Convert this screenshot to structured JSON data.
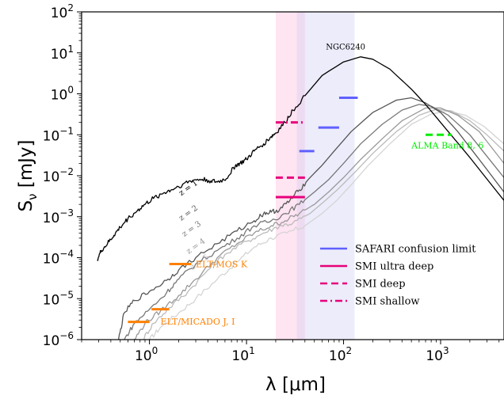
{
  "chart_data": {
    "type": "line",
    "title": "",
    "xlabel": "λ [μm]",
    "ylabel": "S",
    "ylabel_subscript": "ν",
    "ylabel_unit": " [mJy]",
    "xscale": "log",
    "yscale": "log",
    "xlim": [
      0.2,
      4500
    ],
    "ylim": [
      1e-06,
      100
    ],
    "x_ticks": [
      {
        "v": 1,
        "base": "10",
        "exp": "0"
      },
      {
        "v": 10,
        "base": "10",
        "exp": "1"
      },
      {
        "v": 100,
        "base": "10",
        "exp": "2"
      },
      {
        "v": 1000,
        "base": "10",
        "exp": "3"
      }
    ],
    "y_ticks": [
      {
        "v": 100,
        "base": "10",
        "exp": "2"
      },
      {
        "v": 10,
        "base": "10",
        "exp": "1"
      },
      {
        "v": 1,
        "base": "10",
        "exp": "0"
      },
      {
        "v": 0.1,
        "base": "10",
        "exp": "−1"
      },
      {
        "v": 0.01,
        "base": "10",
        "exp": "−2"
      },
      {
        "v": 0.001,
        "base": "10",
        "exp": "−3"
      },
      {
        "v": 0.0001,
        "base": "10",
        "exp": "−4"
      },
      {
        "v": 1e-05,
        "base": "10",
        "exp": "−5"
      },
      {
        "v": 1e-06,
        "base": "10",
        "exp": "−6"
      }
    ],
    "bands": [
      {
        "x": [
          20,
          33
        ],
        "color": "#ffb3d9",
        "opacity": 0.35
      },
      {
        "x": [
          33,
          40
        ],
        "color": "#d8b0e0",
        "opacity": 0.45
      },
      {
        "x": [
          40,
          130
        ],
        "color": "#c8c8f4",
        "opacity": 0.35
      }
    ],
    "series": [
      {
        "name": "NGC6240",
        "color": "#000000",
        "points": [
          [
            0.29,
            9e-05
          ],
          [
            0.32,
            0.00015
          ],
          [
            0.37,
            0.00022
          ],
          [
            0.43,
            0.00035
          ],
          [
            0.5,
            0.00055
          ],
          [
            0.6,
            0.0009
          ],
          [
            0.75,
            0.0014
          ],
          [
            0.9,
            0.002
          ],
          [
            1.1,
            0.0028
          ],
          [
            1.4,
            0.0038
          ],
          [
            1.7,
            0.0046
          ],
          [
            2.2,
            0.0062
          ],
          [
            2.8,
            0.0078
          ],
          [
            3.5,
            0.0082
          ],
          [
            4.3,
            0.0075
          ],
          [
            5,
            0.007
          ],
          [
            6.2,
            0.0085
          ],
          [
            7.7,
            0.018
          ],
          [
            8.6,
            0.02
          ],
          [
            10,
            0.025
          ],
          [
            12,
            0.04
          ],
          [
            15,
            0.06
          ],
          [
            18,
            0.09
          ],
          [
            20,
            0.11
          ],
          [
            25,
            0.2
          ],
          [
            30,
            0.4
          ],
          [
            40,
            0.9
          ],
          [
            60,
            2.8
          ],
          [
            100,
            6
          ],
          [
            150,
            8
          ],
          [
            200,
            7
          ],
          [
            300,
            4
          ],
          [
            500,
            1.3
          ],
          [
            700,
            0.55
          ],
          [
            1000,
            0.2
          ],
          [
            2000,
            0.028
          ],
          [
            4500,
            0.0025
          ]
        ]
      },
      {
        "name": "z = 1",
        "color": "#555555",
        "points": [
          [
            0.48,
            1e-06
          ],
          [
            0.55,
            4.5e-06
          ],
          [
            0.7,
            9e-06
          ],
          [
            1,
            1.5e-05
          ],
          [
            1.5,
            2.8e-05
          ],
          [
            2,
            5e-05
          ],
          [
            3,
            0.0001
          ],
          [
            5,
            0.00022
          ],
          [
            8,
            0.00045
          ],
          [
            12,
            0.0008
          ],
          [
            15,
            0.0012
          ],
          [
            18,
            0.0013
          ],
          [
            22,
            0.0015
          ],
          [
            28,
            0.0025
          ],
          [
            35,
            0.0045
          ],
          [
            45,
            0.009
          ],
          [
            60,
            0.018
          ],
          [
            80,
            0.04
          ],
          [
            120,
            0.12
          ],
          [
            200,
            0.35
          ],
          [
            350,
            0.7
          ],
          [
            500,
            0.8
          ],
          [
            700,
            0.6
          ],
          [
            1000,
            0.35
          ],
          [
            1500,
            0.12
          ],
          [
            2500,
            0.025
          ],
          [
            4500,
            0.004
          ]
        ]
      },
      {
        "name": "z = 2",
        "color": "#777777",
        "points": [
          [
            0.55,
            1e-06
          ],
          [
            0.7,
            2.5e-06
          ],
          [
            1,
            5.5e-06
          ],
          [
            1.5,
            1.4e-05
          ],
          [
            2,
            3e-05
          ],
          [
            3,
            7e-05
          ],
          [
            5,
            0.00015
          ],
          [
            8,
            0.0003
          ],
          [
            12,
            0.0006
          ],
          [
            18,
            0.0008
          ],
          [
            25,
            0.0012
          ],
          [
            35,
            0.002
          ],
          [
            50,
            0.004
          ],
          [
            70,
            0.008
          ],
          [
            100,
            0.02
          ],
          [
            150,
            0.06
          ],
          [
            250,
            0.18
          ],
          [
            400,
            0.4
          ],
          [
            600,
            0.55
          ],
          [
            800,
            0.5
          ],
          [
            1200,
            0.3
          ],
          [
            2000,
            0.1
          ],
          [
            3000,
            0.03
          ],
          [
            4500,
            0.009
          ]
        ]
      },
      {
        "name": "z = 3",
        "color": "#999999",
        "points": [
          [
            0.7,
            1e-06
          ],
          [
            0.9,
            2.5e-06
          ],
          [
            1.3,
            5e-06
          ],
          [
            2,
            1.2e-05
          ],
          [
            3,
            3e-05
          ],
          [
            5,
            0.0001
          ],
          [
            8,
            0.00022
          ],
          [
            12,
            0.0004
          ],
          [
            18,
            0.0006
          ],
          [
            25,
            0.0008
          ],
          [
            35,
            0.0012
          ],
          [
            50,
            0.002
          ],
          [
            70,
            0.004
          ],
          [
            100,
            0.009
          ],
          [
            150,
            0.025
          ],
          [
            250,
            0.08
          ],
          [
            400,
            0.22
          ],
          [
            700,
            0.45
          ],
          [
            1000,
            0.45
          ],
          [
            1500,
            0.3
          ],
          [
            2500,
            0.12
          ],
          [
            4500,
            0.02
          ]
        ]
      },
      {
        "name": "z = 4",
        "color": "#bbbbbb",
        "points": [
          [
            0.85,
            1e-06
          ],
          [
            1.1,
            2.5e-06
          ],
          [
            1.6,
            6e-06
          ],
          [
            2.5,
            1.5e-05
          ],
          [
            4,
            5e-05
          ],
          [
            6,
            0.00012
          ],
          [
            10,
            0.00025
          ],
          [
            15,
            0.0004
          ],
          [
            22,
            0.0006
          ],
          [
            30,
            0.0007
          ],
          [
            45,
            0.0012
          ],
          [
            65,
            0.0025
          ],
          [
            90,
            0.005
          ],
          [
            130,
            0.012
          ],
          [
            200,
            0.035
          ],
          [
            350,
            0.12
          ],
          [
            600,
            0.3
          ],
          [
            900,
            0.42
          ],
          [
            1300,
            0.38
          ],
          [
            2000,
            0.22
          ],
          [
            3000,
            0.1
          ],
          [
            4500,
            0.04
          ]
        ]
      },
      {
        "name": "z = 5",
        "color": "#d4d4d4",
        "points": [
          [
            1,
            1e-06
          ],
          [
            1.3,
            2e-06
          ],
          [
            2,
            4.5e-06
          ],
          [
            3,
            1e-05
          ],
          [
            5,
            3e-05
          ],
          [
            8,
            8e-05
          ],
          [
            12,
            0.00018
          ],
          [
            18,
            0.0003
          ],
          [
            26,
            0.0004
          ],
          [
            40,
            0.0006
          ],
          [
            60,
            0.0012
          ],
          [
            85,
            0.0025
          ],
          [
            120,
            0.006
          ],
          [
            180,
            0.018
          ],
          [
            300,
            0.06
          ],
          [
            500,
            0.18
          ],
          [
            800,
            0.32
          ],
          [
            1200,
            0.38
          ],
          [
            1800,
            0.3
          ],
          [
            2800,
            0.16
          ],
          [
            4500,
            0.06
          ]
        ]
      }
    ],
    "curve_labels": [
      {
        "text": "NGC6240",
        "x": 105,
        "y": 12,
        "color": "#000000",
        "rotate": 0
      },
      {
        "text": "z = 1",
        "x": 2.6,
        "y": 0.0045,
        "color": "#000000",
        "rotate": -35
      },
      {
        "text": "z = 2",
        "x": 2.6,
        "y": 0.0011,
        "color": "#555555",
        "rotate": -35
      },
      {
        "text": "z = 3",
        "x": 2.8,
        "y": 0.00045,
        "color": "#777777",
        "rotate": -35
      },
      {
        "text": "z = 4",
        "x": 3.1,
        "y": 0.00017,
        "color": "#999999",
        "rotate": -35
      },
      {
        "text": "z = 5",
        "x": 3.4,
        "y": 7e-05,
        "color": "#bbbbbb",
        "rotate": -35
      }
    ],
    "limits": [
      {
        "group": "SAFARI",
        "x": [
          35,
          50
        ],
        "y": 0.04,
        "color": "#6060ff",
        "style": "solid"
      },
      {
        "group": "SAFARI",
        "x": [
          55,
          90
        ],
        "y": 0.15,
        "color": "#6060ff",
        "style": "solid"
      },
      {
        "group": "SAFARI",
        "x": [
          90,
          140
        ],
        "y": 0.8,
        "color": "#6060ff",
        "style": "solid"
      },
      {
        "group": "SMI",
        "x": [
          20,
          40
        ],
        "y": 0.003,
        "color": "#e8007a",
        "style": "solid"
      },
      {
        "group": "SMI",
        "x": [
          20,
          40
        ],
        "y": 0.009,
        "color": "#e8007a",
        "style": "dashed"
      },
      {
        "group": "SMI",
        "x": [
          20,
          40
        ],
        "y": 0.2,
        "color": "#e8007a",
        "style": "dashdot"
      },
      {
        "group": "ALMA",
        "x": [
          700,
          1300
        ],
        "y": 0.1,
        "color": "#00ee00",
        "style": "dashed"
      },
      {
        "group": "ELT",
        "x": [
          1.6,
          2.7
        ],
        "y": 7e-05,
        "color": "#ff8000",
        "style": "solid"
      },
      {
        "group": "ELT",
        "x": [
          1.05,
          1.6
        ],
        "y": 5.5e-06,
        "color": "#ff8000",
        "style": "solid"
      },
      {
        "group": "ELT",
        "x": [
          0.6,
          1
        ],
        "y": 2.7e-06,
        "color": "#ff8000",
        "style": "solid"
      }
    ],
    "annotations": [
      {
        "text": "ELT/MOS K",
        "x": 3.0,
        "y": 7e-05,
        "color": "#ff8000"
      },
      {
        "text": "ELT/MICADO J, I",
        "x": 1.3,
        "y": 2.8e-06,
        "color": "#ff8000"
      },
      {
        "text": "ALMA Band 8, 6",
        "x": 500,
        "y": 0.055,
        "color": "#00ee00"
      }
    ],
    "legend": {
      "placement": "lower right",
      "entries": [
        {
          "label": "SAFARI confusion limit",
          "color": "#6060ff",
          "style": "solid"
        },
        {
          "label": "SMI ultra deep",
          "color": "#e8007a",
          "style": "solid"
        },
        {
          "label": "SMI deep",
          "color": "#e8007a",
          "style": "dashed"
        },
        {
          "label": "SMI shallow",
          "color": "#e8007a",
          "style": "dashdot"
        }
      ]
    }
  }
}
